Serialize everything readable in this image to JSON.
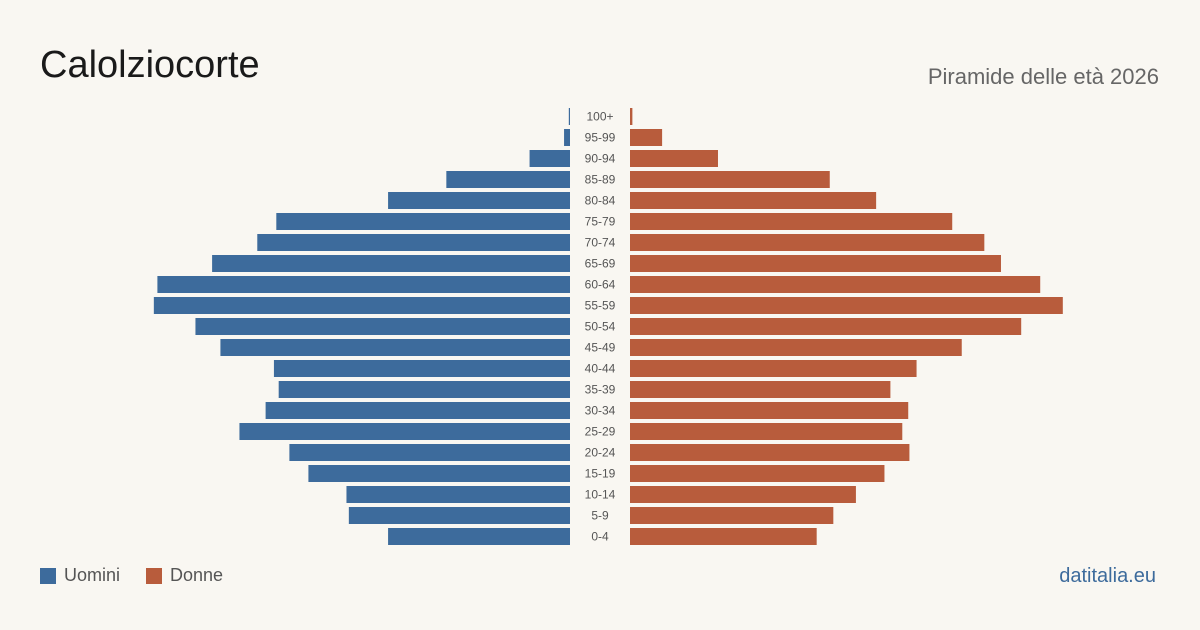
{
  "header": {
    "title": "Calolziocorte",
    "subtitle": "Piramide delle età 2026"
  },
  "legend": {
    "men_label": "Uomini",
    "women_label": "Donne"
  },
  "footer": {
    "brand": "datitalia.eu"
  },
  "colors": {
    "men": "#3d6b9c",
    "women": "#b85c3c",
    "background": "#f9f7f2"
  },
  "chart_data": {
    "type": "bar",
    "orientation": "horizontal-pyramid",
    "categories": [
      "100+",
      "95-99",
      "90-94",
      "85-89",
      "80-84",
      "75-79",
      "70-74",
      "65-69",
      "60-64",
      "55-59",
      "50-54",
      "45-49",
      "40-44",
      "35-39",
      "30-34",
      "25-29",
      "20-24",
      "15-19",
      "10-14",
      "5-9",
      "0-4"
    ],
    "series": [
      {
        "name": "Uomini",
        "values": [
          1,
          5,
          34,
          104,
          153,
          247,
          263,
          301,
          347,
          350,
          315,
          294,
          249,
          245,
          256,
          278,
          236,
          220,
          188,
          186,
          153
        ]
      },
      {
        "name": "Donne",
        "values": [
          2,
          27,
          74,
          168,
          207,
          271,
          298,
          312,
          345,
          364,
          329,
          279,
          241,
          219,
          234,
          229,
          235,
          214,
          190,
          171,
          157
        ]
      }
    ],
    "xlim": [
      0,
      365
    ],
    "grid": false,
    "legend_position": "bottom-left"
  }
}
